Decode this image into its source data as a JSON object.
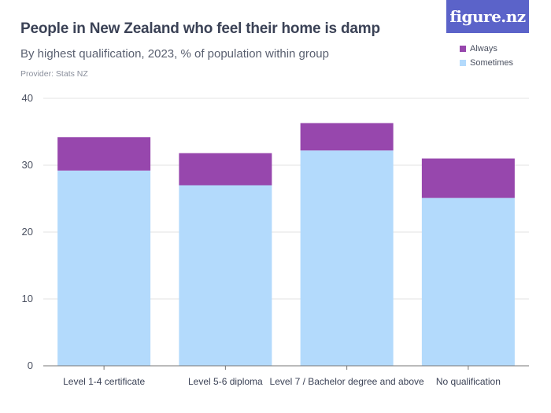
{
  "header": {
    "title": "People in New Zealand who feel their home is damp",
    "subtitle": "By highest qualification, 2023, % of population within group",
    "provider": "Provider: Stats NZ",
    "logo_text": "figure.nz"
  },
  "colors": {
    "logo_bg": "#5b63c9",
    "always": "#9747ad",
    "sometimes": "#b3dafc",
    "grid": "#e3e3e3",
    "axis": "#777777"
  },
  "legend": {
    "items": [
      {
        "label": "Always",
        "color": "#9747ad"
      },
      {
        "label": "Sometimes",
        "color": "#b3dafc"
      }
    ]
  },
  "chart_data": {
    "type": "bar",
    "stacked": true,
    "categories": [
      "Level 1-4 certificate",
      "Level 5-6 diploma",
      "Level 7 / Bachelor degree and above",
      "No qualification"
    ],
    "series": [
      {
        "name": "Sometimes",
        "color": "#b3dafc",
        "values": [
          29.2,
          27.0,
          32.2,
          25.1
        ]
      },
      {
        "name": "Always",
        "color": "#9747ad",
        "values": [
          5.0,
          4.8,
          4.1,
          5.9
        ]
      }
    ],
    "ylim": [
      0,
      40
    ],
    "yticks": [
      0,
      10,
      20,
      30,
      40
    ],
    "grid": true,
    "legend_position": "top-right"
  }
}
